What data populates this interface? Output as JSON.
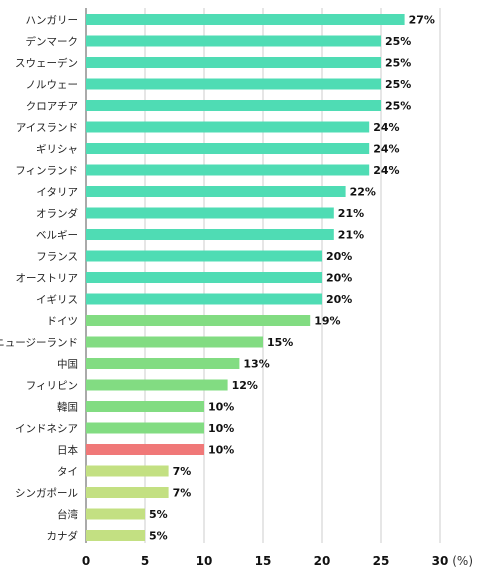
{
  "chart_data": {
    "type": "bar",
    "orientation": "horizontal",
    "categories": [
      "ハンガリー",
      "デンマーク",
      "スウェーデン",
      "ノルウェー",
      "クロアチア",
      "アイスランド",
      "ギリシャ",
      "フィンランド",
      "イタリア",
      "オランダ",
      "ベルギー",
      "フランス",
      "オーストリア",
      "イギリス",
      "ドイツ",
      "ニュージーランド",
      "中国",
      "フィリピン",
      "韓国",
      "インドネシア",
      "日本",
      "タイ",
      "シンガポール",
      "台湾",
      "カナダ"
    ],
    "values": [
      27,
      25,
      25,
      25,
      25,
      24,
      24,
      24,
      22,
      21,
      21,
      20,
      20,
      20,
      19,
      15,
      13,
      12,
      10,
      10,
      10,
      7,
      7,
      5,
      5
    ],
    "value_labels": [
      "27%",
      "25%",
      "25%",
      "25%",
      "25%",
      "24%",
      "24%",
      "24%",
      "22%",
      "21%",
      "21%",
      "20%",
      "20%",
      "20%",
      "19%",
      "15%",
      "13%",
      "12%",
      "10%",
      "10%",
      "10%",
      "7%",
      "7%",
      "5%",
      "5%"
    ],
    "bar_colors": [
      "#4fdcb4",
      "#4fdcb4",
      "#4fdcb4",
      "#4fdcb4",
      "#4fdcb4",
      "#4fdcb4",
      "#4fdcb4",
      "#4fdcb4",
      "#4fdcb4",
      "#4fdcb4",
      "#4fdcb4",
      "#4fdcb4",
      "#4fdcb4",
      "#4fdcb4",
      "#82dc82",
      "#82dc82",
      "#82dc82",
      "#82dc82",
      "#82dc82",
      "#82dc82",
      "#f07878",
      "#c3e082",
      "#c3e082",
      "#c3e082",
      "#c3e082"
    ],
    "xlim": [
      0,
      30
    ],
    "xticks": [
      0,
      5,
      10,
      15,
      20,
      25,
      30
    ],
    "x_unit_label": "(%)",
    "title": "",
    "xlabel": "",
    "ylabel": "",
    "grid": "vertical",
    "legend": "none",
    "colors": {
      "grid": "#cccccc",
      "axis": "#555555"
    }
  }
}
